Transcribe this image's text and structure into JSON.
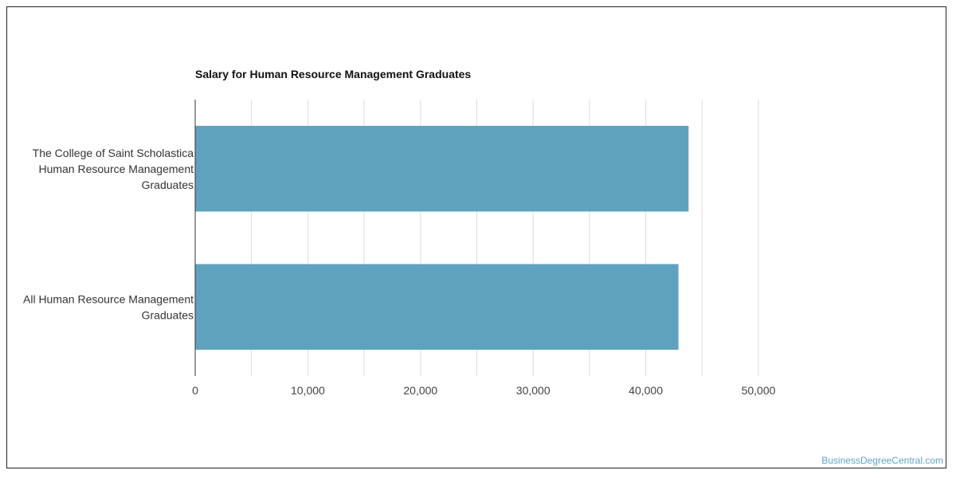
{
  "watermark": "BusinessDegreeCentral.com",
  "chart_data": {
    "type": "bar",
    "orientation": "horizontal",
    "title": "Salary for Human Resource Management Graduates",
    "categories": [
      [
        "The College of Saint Scholastica",
        "Human Resource Management",
        "Graduates"
      ],
      [
        "All Human Resource Management",
        "Graduates"
      ]
    ],
    "values": [
      43800,
      42900
    ],
    "xlim": [
      0,
      50000
    ],
    "xticks": [
      0,
      10000,
      20000,
      30000,
      40000,
      50000
    ],
    "xtick_labels": [
      "0",
      "10,000",
      "20,000",
      "30,000",
      "40,000",
      "50,000"
    ],
    "grid": true,
    "bar_color": "#5fa2be",
    "xlabel": "",
    "ylabel": ""
  }
}
